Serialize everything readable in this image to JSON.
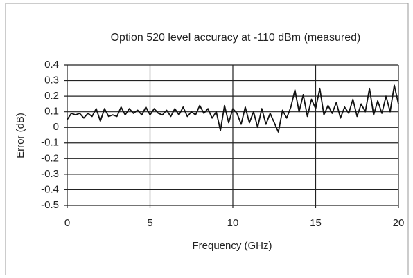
{
  "chart_data": {
    "type": "line",
    "title": "Option 520 level accuracy at -110 dBm (measured)",
    "x_label": "Frequency (GHz)",
    "y_label": "Error (dB)",
    "color": "#111111",
    "grid": true,
    "xlim": [
      0,
      20
    ],
    "xticks": [
      0,
      5,
      10,
      15,
      20
    ],
    "ylim": [
      -0.5,
      0.4
    ],
    "yticks": [
      0.4,
      0.3,
      0.2,
      0.1,
      0,
      -0.1,
      -0.2,
      -0.3,
      -0.4,
      -0.5
    ],
    "x": [
      0,
      0.25,
      0.5,
      0.75,
      1,
      1.25,
      1.5,
      1.75,
      2,
      2.25,
      2.5,
      2.75,
      3,
      3.25,
      3.5,
      3.75,
      4,
      4.25,
      4.5,
      4.75,
      5,
      5.25,
      5.5,
      5.75,
      6,
      6.25,
      6.5,
      6.75,
      7,
      7.25,
      7.5,
      7.75,
      8,
      8.25,
      8.5,
      8.75,
      9,
      9.25,
      9.5,
      9.75,
      10,
      10.25,
      10.5,
      10.75,
      11,
      11.25,
      11.5,
      11.75,
      12,
      12.25,
      12.5,
      12.75,
      13,
      13.25,
      13.5,
      13.75,
      14,
      14.25,
      14.5,
      14.75,
      15,
      15.25,
      15.5,
      15.75,
      16,
      16.25,
      16.5,
      16.75,
      17,
      17.25,
      17.5,
      17.75,
      18,
      18.25,
      18.5,
      18.75,
      19,
      19.25,
      19.5,
      19.75,
      20
    ],
    "values": [
      0.05,
      0.09,
      0.08,
      0.09,
      0.06,
      0.09,
      0.07,
      0.12,
      0.04,
      0.12,
      0.07,
      0.08,
      0.07,
      0.13,
      0.08,
      0.12,
      0.09,
      0.11,
      0.08,
      0.13,
      0.08,
      0.12,
      0.09,
      0.08,
      0.11,
      0.07,
      0.12,
      0.08,
      0.13,
      0.07,
      0.1,
      0.08,
      0.14,
      0.09,
      0.12,
      0.06,
      0.1,
      -0.02,
      0.14,
      0.03,
      0.12,
      0.09,
      0.02,
      0.13,
      0.03,
      0.1,
      0.0,
      0.12,
      0.02,
      0.09,
      0.03,
      -0.03,
      0.11,
      0.06,
      0.13,
      0.24,
      0.1,
      0.21,
      0.07,
      0.18,
      0.12,
      0.25,
      0.08,
      0.14,
      0.09,
      0.16,
      0.06,
      0.13,
      0.09,
      0.18,
      0.07,
      0.15,
      0.1,
      0.25,
      0.08,
      0.17,
      0.09,
      0.2,
      0.1,
      0.27,
      0.15
    ]
  }
}
